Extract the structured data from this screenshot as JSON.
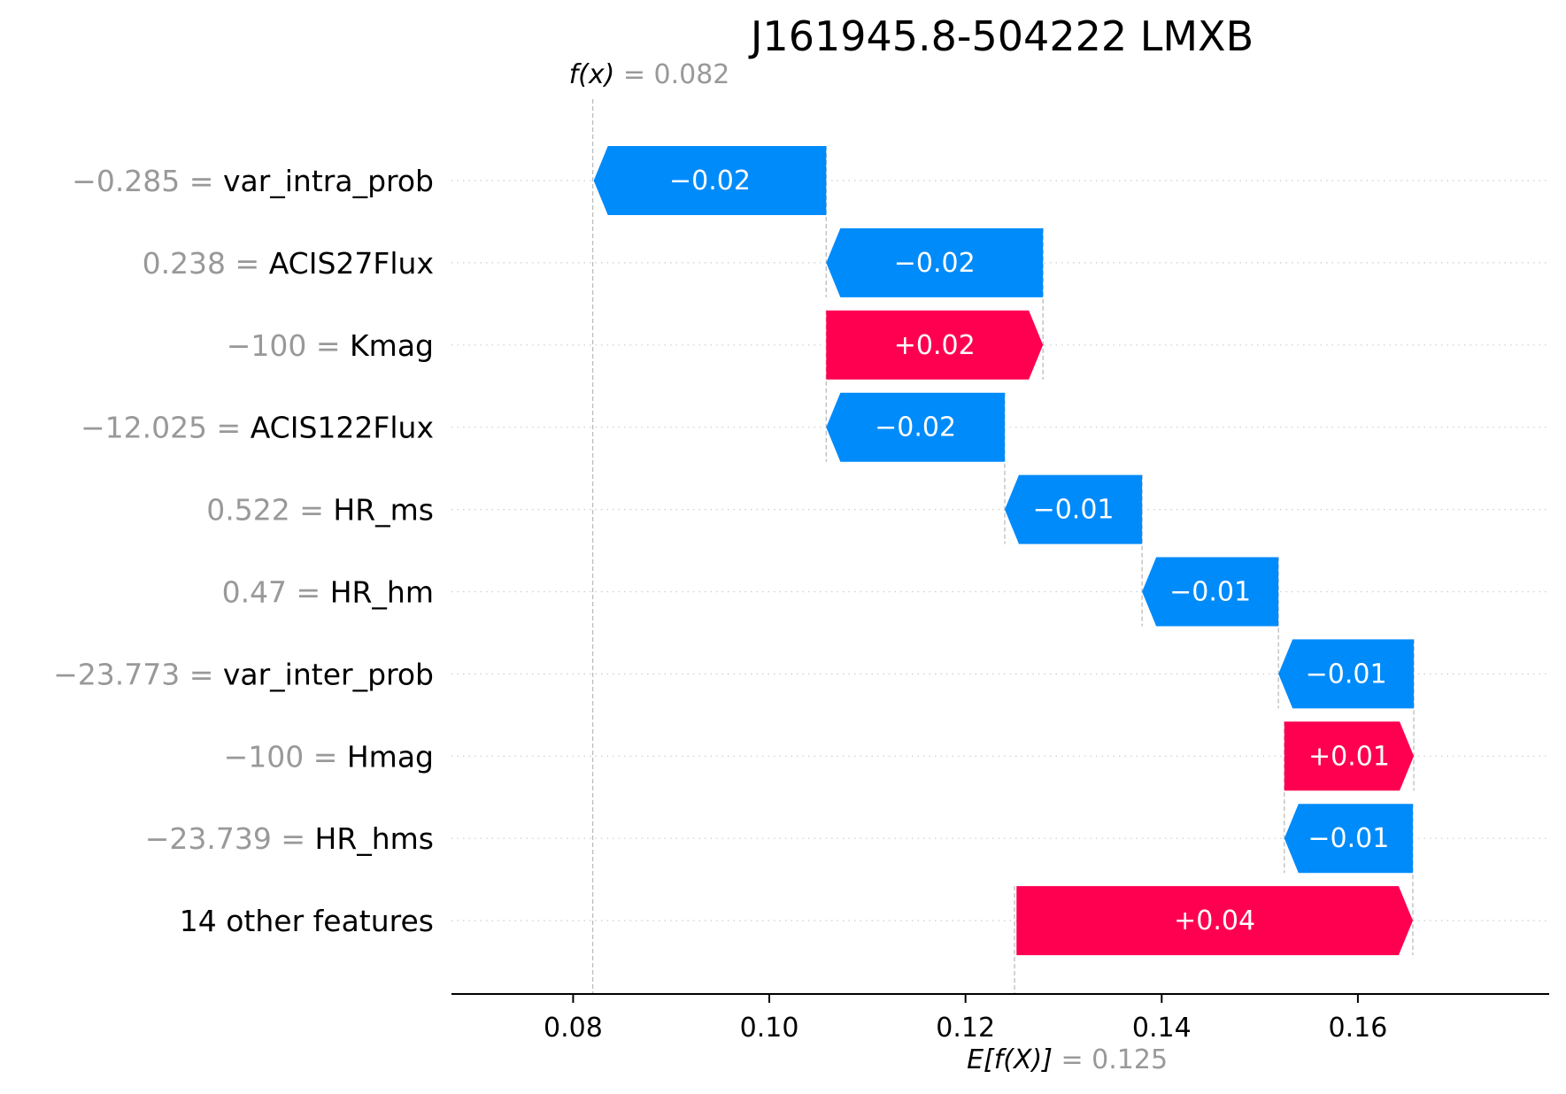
{
  "chart_data": {
    "type": "waterfall",
    "title": "J161945.8-504222 LMXB",
    "fx": {
      "label": "f(x)",
      "equals": "=",
      "value_text": "0.082",
      "value": 0.082
    },
    "base": {
      "label": "E[f(X)]",
      "equals": "=",
      "value_text": "0.125",
      "value": 0.125
    },
    "xlim": [
      0.0676,
      0.1795
    ],
    "xticks": [
      {
        "value": 0.08,
        "label": "0.08"
      },
      {
        "value": 0.1,
        "label": "0.10"
      },
      {
        "value": 0.12,
        "label": "0.12"
      },
      {
        "value": 0.14,
        "label": "0.14"
      },
      {
        "value": 0.16,
        "label": "0.16"
      }
    ],
    "features": [
      {
        "value_text": "−0.285",
        "name": "var_intra_prob",
        "start": 0.1058,
        "end": 0.0821,
        "contribution_text": "−0.02",
        "sign": "neg"
      },
      {
        "value_text": "0.238",
        "name": "ACIS27Flux",
        "start": 0.1279,
        "end": 0.1058,
        "contribution_text": "−0.02",
        "sign": "neg"
      },
      {
        "value_text": "−100",
        "name": "Kmag",
        "start": 0.1058,
        "end": 0.1279,
        "contribution_text": "+0.02",
        "sign": "pos"
      },
      {
        "value_text": "−12.025",
        "name": "ACIS122Flux",
        "start": 0.124,
        "end": 0.1058,
        "contribution_text": "−0.02",
        "sign": "neg"
      },
      {
        "value_text": "0.522",
        "name": "HR_ms",
        "start": 0.138,
        "end": 0.124,
        "contribution_text": "−0.01",
        "sign": "neg"
      },
      {
        "value_text": "0.47",
        "name": "HR_hm",
        "start": 0.1519,
        "end": 0.138,
        "contribution_text": "−0.01",
        "sign": "neg"
      },
      {
        "value_text": "−23.773",
        "name": "var_inter_prob",
        "start": 0.1657,
        "end": 0.1519,
        "contribution_text": "−0.01",
        "sign": "neg"
      },
      {
        "value_text": "−100",
        "name": "Hmag",
        "start": 0.1525,
        "end": 0.1657,
        "contribution_text": "+0.01",
        "sign": "pos"
      },
      {
        "value_text": "−23.739",
        "name": "HR_hms",
        "start": 0.1656,
        "end": 0.1525,
        "contribution_text": "−0.01",
        "sign": "neg"
      },
      {
        "value_text": "",
        "name": "14 other features",
        "start": 0.1252,
        "end": 0.1656,
        "contribution_text": "+0.04",
        "sign": "pos"
      }
    ],
    "colors": {
      "positive": "#ff0051",
      "negative": "#008bfb",
      "dashed": "#bbbbbb",
      "grid": "#cccccc",
      "axis": "#000000"
    },
    "grid": "horizontal-dotted"
  }
}
